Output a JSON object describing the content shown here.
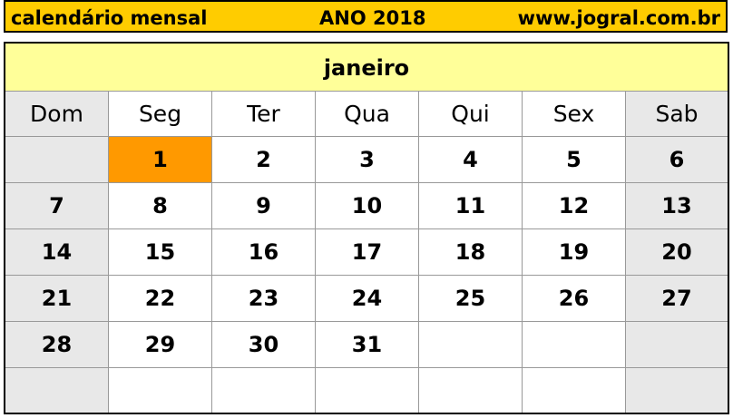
{
  "header": {
    "left": "calendário mensal",
    "center": "ANO 2018",
    "right": "www.jogral.com.br"
  },
  "table": {
    "month": "janeiro",
    "weekdays": [
      "Dom",
      "Seg",
      "Ter",
      "Qua",
      "Qui",
      "Sex",
      "Sab"
    ],
    "rows": [
      [
        null,
        1,
        2,
        3,
        4,
        5,
        6
      ],
      [
        7,
        8,
        9,
        10,
        11,
        12,
        13
      ],
      [
        14,
        15,
        16,
        17,
        18,
        19,
        20
      ],
      [
        21,
        22,
        23,
        24,
        25,
        26,
        27
      ],
      [
        28,
        29,
        30,
        31,
        null,
        null,
        null
      ],
      [
        null,
        null,
        null,
        null,
        null,
        null,
        null
      ]
    ]
  }
}
